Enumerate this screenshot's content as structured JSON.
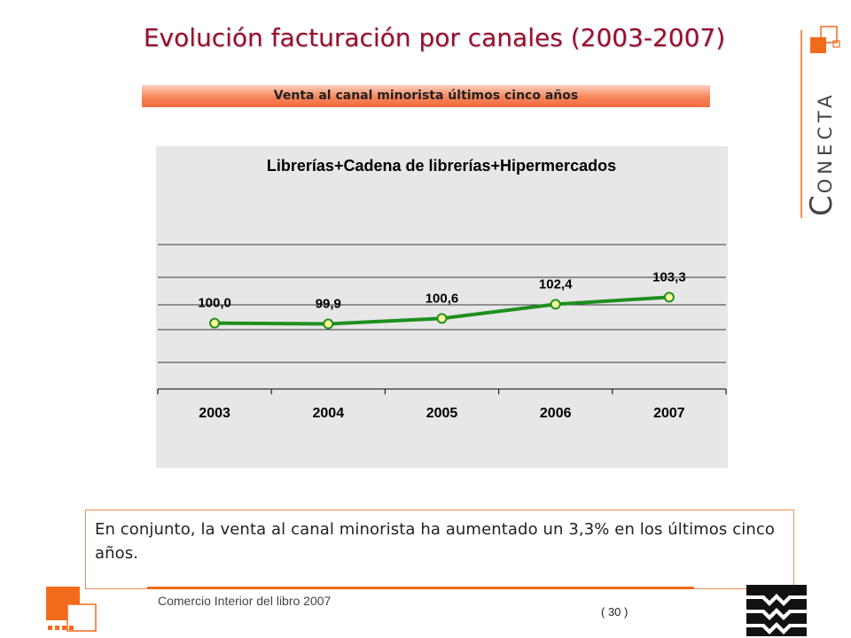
{
  "slide": {
    "title": "Evolución facturación por canales (2003-2007)",
    "subtitle": "Venta al canal minorista últimos cinco años",
    "summary": "En conjunto, la venta al canal minorista ha aumentado un 3,3% en los últimos cinco años.",
    "footer_left": "Comercio Interior del libro 2007",
    "page_number": "( 30 )",
    "logo_text": "CONECTA"
  },
  "colors": {
    "title": "#9a0d30",
    "accent_orange": "#f26b1d",
    "series_line": "#1f8f1f",
    "marker_fill": "#ffff99",
    "chart_background": "#e7e7e7"
  },
  "chart_data": {
    "type": "line",
    "title": "Librerías+Cadena de librerías+Hipermercados",
    "categories": [
      "2003",
      "2004",
      "2005",
      "2006",
      "2007"
    ],
    "series": [
      {
        "values": [
          100.0,
          99.9,
          100.6,
          102.4,
          103.3
        ]
      }
    ],
    "data_labels": [
      "100,0",
      "99,9",
      "100,6",
      "102,4",
      "103,3"
    ],
    "xlabel": "",
    "ylabel": "",
    "ylim": [
      95,
      110
    ],
    "grid": true,
    "legend": "none",
    "markers": "circle"
  }
}
